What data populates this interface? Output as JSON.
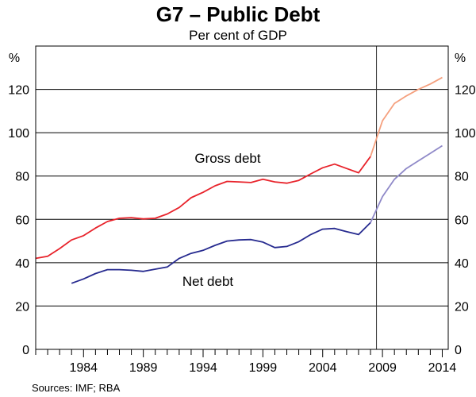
{
  "chart_data": {
    "type": "line",
    "title": "G7 – Public Debt",
    "subtitle": "Per cent of GDP",
    "ylabel_left": "%",
    "ylabel_right": "%",
    "ylim": [
      0,
      140
    ],
    "yticks": [
      0,
      20,
      40,
      60,
      80,
      100,
      120
    ],
    "xlim": [
      1980,
      2014.5
    ],
    "xticks": [
      1984,
      1989,
      1994,
      1999,
      2004,
      2009,
      2014
    ],
    "minor_xticks_every": 1,
    "forecast_divider_x": 2008.5,
    "source": "Sources: IMF; RBA",
    "series": [
      {
        "name": "Gross debt",
        "label_text": "Gross debt",
        "color": "#e8232b",
        "forecast_color": "#f5a07e",
        "actual": [
          [
            1980,
            42.0
          ],
          [
            1981,
            43.0
          ],
          [
            1982,
            46.5
          ],
          [
            1983,
            50.5
          ],
          [
            1984,
            52.5
          ],
          [
            1985,
            56.0
          ],
          [
            1986,
            59.0
          ],
          [
            1987,
            60.5
          ],
          [
            1988,
            60.8
          ],
          [
            1989,
            60.2
          ],
          [
            1990,
            60.5
          ],
          [
            1991,
            62.5
          ],
          [
            1992,
            65.5
          ],
          [
            1993,
            70.0
          ],
          [
            1994,
            72.5
          ],
          [
            1995,
            75.5
          ],
          [
            1996,
            77.5
          ],
          [
            1997,
            77.3
          ],
          [
            1998,
            77.0
          ],
          [
            1999,
            78.5
          ],
          [
            2000,
            77.3
          ],
          [
            2001,
            76.7
          ],
          [
            2002,
            78.0
          ],
          [
            2003,
            81.0
          ],
          [
            2004,
            83.8
          ],
          [
            2005,
            85.5
          ],
          [
            2006,
            83.5
          ],
          [
            2007,
            81.5
          ],
          [
            2008,
            89.0
          ]
        ],
        "forecast": [
          [
            2008,
            89.0
          ],
          [
            2009,
            105.5
          ],
          [
            2010,
            113.5
          ],
          [
            2011,
            117.0
          ],
          [
            2012,
            120.0
          ],
          [
            2013,
            122.5
          ],
          [
            2014,
            125.5
          ]
        ]
      },
      {
        "name": "Net debt",
        "label_text": "Net debt",
        "color": "#262a8f",
        "forecast_color": "#8f89c8",
        "actual": [
          [
            1983,
            30.5
          ],
          [
            1984,
            32.5
          ],
          [
            1985,
            35.0
          ],
          [
            1986,
            36.8
          ],
          [
            1987,
            36.8
          ],
          [
            1988,
            36.5
          ],
          [
            1989,
            36.0
          ],
          [
            1990,
            37.0
          ],
          [
            1991,
            38.0
          ],
          [
            1992,
            42.0
          ],
          [
            1993,
            44.3
          ],
          [
            1994,
            45.7
          ],
          [
            1995,
            48.0
          ],
          [
            1996,
            50.0
          ],
          [
            1997,
            50.5
          ],
          [
            1998,
            50.7
          ],
          [
            1999,
            49.5
          ],
          [
            2000,
            47.0
          ],
          [
            2001,
            47.5
          ],
          [
            2002,
            49.7
          ],
          [
            2003,
            53.0
          ],
          [
            2004,
            55.5
          ],
          [
            2005,
            55.8
          ],
          [
            2006,
            54.3
          ],
          [
            2007,
            53.0
          ],
          [
            2008,
            58.5
          ]
        ],
        "forecast": [
          [
            2008,
            58.5
          ],
          [
            2009,
            70.5
          ],
          [
            2010,
            78.5
          ],
          [
            2011,
            83.5
          ],
          [
            2012,
            87.0
          ],
          [
            2013,
            90.5
          ],
          [
            2014,
            94.0
          ]
        ]
      }
    ]
  }
}
